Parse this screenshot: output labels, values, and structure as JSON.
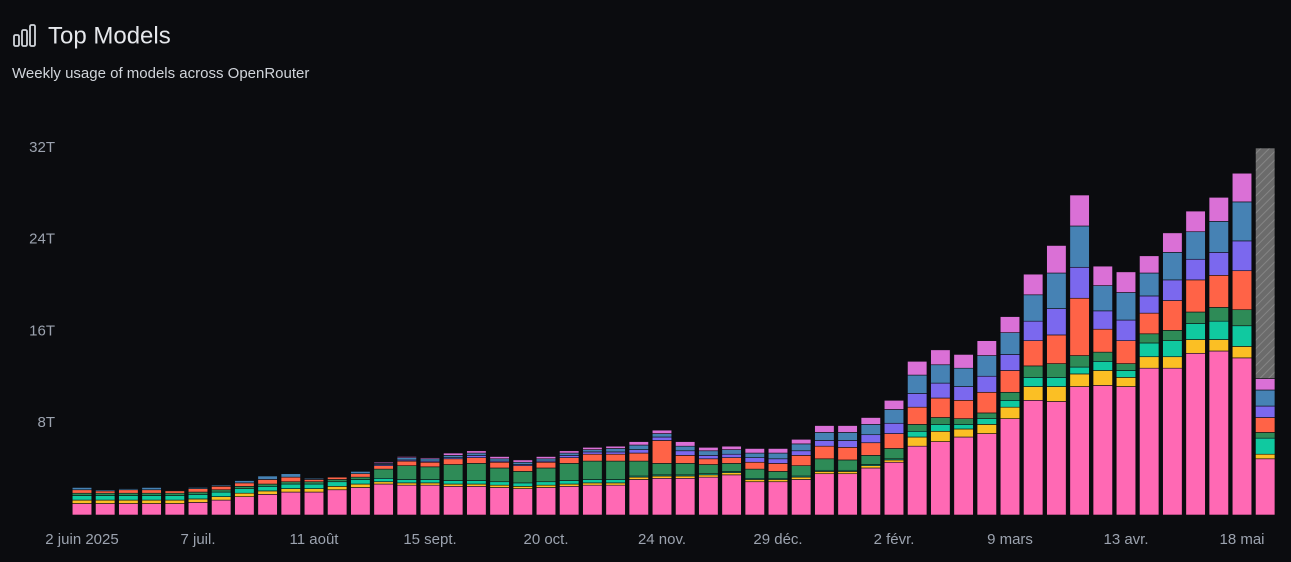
{
  "header": {
    "title": "Top Models",
    "subtitle": "Weekly usage of models across OpenRouter"
  },
  "chart_data": {
    "type": "stacked-bar",
    "categories": [
      "2 juin 2025",
      null,
      null,
      null,
      null,
      "7 juil.",
      null,
      null,
      null,
      null,
      "11 août",
      null,
      null,
      null,
      null,
      "15 sept.",
      null,
      null,
      null,
      null,
      "20 oct.",
      null,
      null,
      null,
      null,
      "24 nov.",
      null,
      null,
      null,
      null,
      "29 déc.",
      null,
      null,
      null,
      null,
      "2 févr.",
      null,
      null,
      null,
      null,
      "9 mars",
      null,
      null,
      null,
      null,
      "13 avr.",
      null,
      null,
      null,
      null,
      "18 mai",
      null
    ],
    "ylim": [
      0,
      32
    ],
    "yticks": [
      {
        "value": 8,
        "label": "8T"
      },
      {
        "value": 16,
        "label": "16T"
      },
      {
        "value": 24,
        "label": "24T"
      },
      {
        "value": 32,
        "label": "32T"
      }
    ],
    "grid": false,
    "series": [
      {
        "color": "#ff69b4",
        "values": [
          1.0,
          1.0,
          1.0,
          1.0,
          1.0,
          1.1,
          1.3,
          1.6,
          1.8,
          2.0,
          2.0,
          2.2,
          2.4,
          2.7,
          2.6,
          2.6,
          2.5,
          2.5,
          2.4,
          2.3,
          2.4,
          2.5,
          2.6,
          2.6,
          3.1,
          3.2,
          3.2,
          3.3,
          3.5,
          2.9,
          2.9,
          3.1,
          3.6,
          3.6,
          4.1,
          4.6,
          6.0,
          6.4,
          6.8,
          7.1,
          8.4,
          10.0,
          9.9,
          11.2,
          11.3,
          11.2,
          12.8,
          12.8,
          14.1,
          14.3,
          13.7,
          4.9
        ]
      },
      {
        "color": "#fbbf24",
        "values": [
          0.3,
          0.3,
          0.3,
          0.3,
          0.3,
          0.3,
          0.3,
          0.3,
          0.3,
          0.3,
          0.3,
          0.3,
          0.3,
          0.2,
          0.2,
          0.2,
          0.2,
          0.2,
          0.2,
          0.2,
          0.2,
          0.2,
          0.2,
          0.2,
          0.2,
          0.2,
          0.2,
          0.2,
          0.2,
          0.2,
          0.2,
          0.2,
          0.2,
          0.2,
          0.2,
          0.2,
          0.8,
          0.9,
          0.7,
          0.8,
          1.0,
          1.2,
          1.3,
          1.1,
          1.3,
          0.8,
          1.0,
          1.0,
          1.2,
          1.0,
          1.0,
          0.4
        ]
      },
      {
        "color": "#10c9a0",
        "values": [
          0.4,
          0.4,
          0.4,
          0.4,
          0.4,
          0.4,
          0.4,
          0.4,
          0.4,
          0.4,
          0.4,
          0.4,
          0.4,
          0.3,
          0.3,
          0.3,
          0.3,
          0.3,
          0.3,
          0.3,
          0.3,
          0.3,
          0.3,
          0.3,
          0.1,
          0.1,
          0.1,
          0.1,
          0.1,
          0.1,
          0.1,
          0.1,
          0.1,
          0.1,
          0.1,
          0.1,
          0.5,
          0.6,
          0.4,
          0.5,
          0.6,
          0.8,
          0.8,
          0.6,
          0.8,
          0.6,
          1.2,
          1.4,
          1.4,
          1.6,
          1.8,
          1.4
        ]
      },
      {
        "color": "#2e8b57",
        "values": [
          0.2,
          0.2,
          0.2,
          0.2,
          0.2,
          0.2,
          0.2,
          0.2,
          0.2,
          0.2,
          0.2,
          0.2,
          0.2,
          0.8,
          1.2,
          1.1,
          1.4,
          1.5,
          1.2,
          1.0,
          1.2,
          1.5,
          1.6,
          1.6,
          1.3,
          1.0,
          1.0,
          0.8,
          0.7,
          0.8,
          0.6,
          0.9,
          1.0,
          0.9,
          0.8,
          0.9,
          0.6,
          0.6,
          0.5,
          0.5,
          0.7,
          1.0,
          1.2,
          1.0,
          0.8,
          0.6,
          0.8,
          0.9,
          1.0,
          1.2,
          1.4,
          0.5
        ]
      },
      {
        "color": "#ff6347",
        "values": [
          0.3,
          0.2,
          0.3,
          0.3,
          0.2,
          0.3,
          0.3,
          0.3,
          0.4,
          0.4,
          0.2,
          0.2,
          0.3,
          0.3,
          0.4,
          0.4,
          0.5,
          0.5,
          0.5,
          0.5,
          0.5,
          0.5,
          0.6,
          0.6,
          0.7,
          2.0,
          0.7,
          0.5,
          0.5,
          0.6,
          0.7,
          0.9,
          1.1,
          1.1,
          1.1,
          1.3,
          1.5,
          1.7,
          1.6,
          1.8,
          1.9,
          2.2,
          2.5,
          5.0,
          2.0,
          2.0,
          1.8,
          2.6,
          2.8,
          2.8,
          3.4,
          1.3
        ]
      },
      {
        "color": "#7b68ee",
        "values": [
          0,
          0,
          0,
          0,
          0,
          0,
          0,
          0,
          0,
          0,
          0,
          0,
          0,
          0.1,
          0.1,
          0.1,
          0.1,
          0.2,
          0.1,
          0.1,
          0.1,
          0.2,
          0.2,
          0.2,
          0.3,
          0.3,
          0.4,
          0.3,
          0.3,
          0.4,
          0.4,
          0.4,
          0.5,
          0.6,
          0.7,
          0.9,
          1.2,
          1.3,
          1.2,
          1.4,
          1.4,
          1.7,
          2.3,
          2.7,
          1.6,
          1.8,
          1.5,
          1.8,
          1.8,
          2.0,
          2.6,
          1.0
        ]
      },
      {
        "color": "#4682b4",
        "values": [
          0.2,
          0.1,
          0.1,
          0.2,
          0,
          0.1,
          0.1,
          0.2,
          0.3,
          0.3,
          0.1,
          0,
          0.2,
          0.1,
          0.2,
          0.2,
          0.2,
          0.2,
          0.2,
          0.2,
          0.2,
          0.2,
          0.2,
          0.3,
          0.4,
          0.3,
          0.4,
          0.4,
          0.4,
          0.4,
          0.5,
          0.6,
          0.7,
          0.7,
          0.9,
          1.2,
          1.6,
          1.6,
          1.6,
          1.8,
          1.9,
          2.3,
          3.1,
          3.6,
          2.2,
          2.4,
          2.0,
          2.4,
          2.4,
          2.7,
          3.4,
          1.4
        ]
      },
      {
        "color": "#da70d6",
        "values": [
          0,
          0,
          0,
          0,
          0,
          0,
          0,
          0,
          0,
          0,
          0,
          0,
          0,
          0.1,
          0.1,
          0.1,
          0.2,
          0.2,
          0.2,
          0.2,
          0.2,
          0.2,
          0.2,
          0.2,
          0.3,
          0.3,
          0.4,
          0.3,
          0.3,
          0.4,
          0.4,
          0.4,
          0.6,
          0.6,
          0.6,
          0.8,
          1.2,
          1.3,
          1.2,
          1.3,
          1.4,
          1.8,
          2.4,
          2.7,
          1.7,
          1.8,
          1.5,
          1.7,
          1.8,
          2.1,
          2.5,
          1.0
        ]
      },
      {
        "color": "#6b6b6b",
        "values": [
          null,
          null,
          null,
          null,
          null,
          null,
          null,
          null,
          null,
          null,
          null,
          null,
          null,
          null,
          null,
          null,
          null,
          null,
          null,
          null,
          null,
          null,
          null,
          null,
          null,
          null,
          null,
          null,
          null,
          null,
          null,
          null,
          null,
          null,
          null,
          null,
          null,
          null,
          null,
          null,
          null,
          null,
          null,
          null,
          null,
          null,
          null,
          null,
          null,
          null,
          null,
          20.1
        ]
      }
    ]
  }
}
